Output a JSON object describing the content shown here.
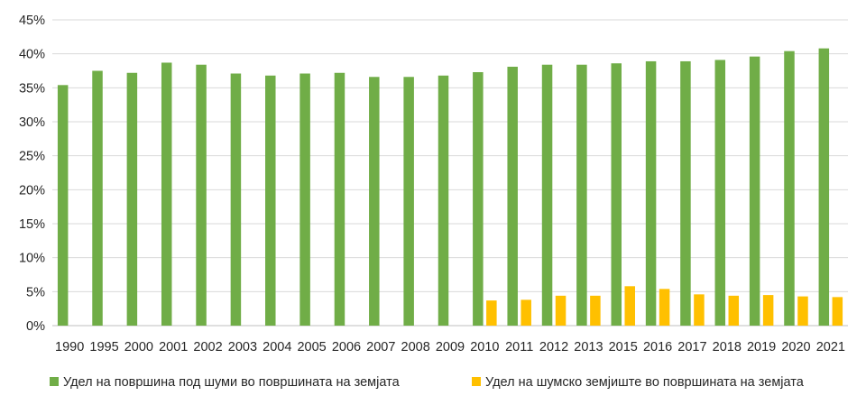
{
  "chart_data": {
    "type": "bar",
    "title": "",
    "xlabel": "",
    "ylabel": "",
    "ylim": [
      0,
      45
    ],
    "y_ticks": [
      "0%",
      "5%",
      "10%",
      "15%",
      "20%",
      "25%",
      "30%",
      "35%",
      "40%",
      "45%"
    ],
    "grid": true,
    "legend_position": "bottom",
    "categories": [
      "1990",
      "1995",
      "2000",
      "2001",
      "2002",
      "2003",
      "2004",
      "2005",
      "2006",
      "2007",
      "2008",
      "2009",
      "2010",
      "2011",
      "2012",
      "2013",
      "2015",
      "2016",
      "2017",
      "2018",
      "2019",
      "2020",
      "2021"
    ],
    "series": [
      {
        "name": "Удел на површина под шуми во површината на земјата",
        "color": "#70ad47",
        "values": [
          35.4,
          37.5,
          37.2,
          38.7,
          38.4,
          37.1,
          36.8,
          37.1,
          37.2,
          36.6,
          36.6,
          36.8,
          37.3,
          38.1,
          38.4,
          38.4,
          38.6,
          38.9,
          38.9,
          39.1,
          39.6,
          40.4,
          40.8
        ]
      },
      {
        "name": "Удел на шумско земјиште во површината на земјата",
        "color": "#ffc000",
        "values": [
          null,
          null,
          null,
          null,
          null,
          null,
          null,
          null,
          null,
          null,
          null,
          null,
          3.7,
          3.8,
          4.4,
          4.4,
          5.8,
          5.4,
          4.6,
          4.4,
          4.5,
          4.3,
          4.2
        ]
      }
    ]
  }
}
